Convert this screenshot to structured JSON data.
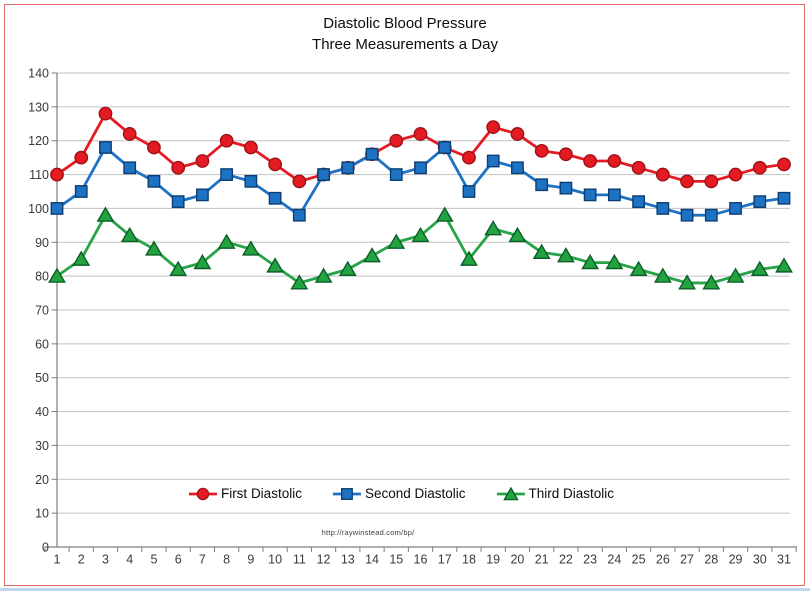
{
  "frame": {
    "border_color": "#df6f68",
    "bottom_strip_color": "#c3d6ec"
  },
  "chart_data": {
    "type": "line",
    "title": "Diastolic Blood Pressure",
    "subtitle": "Three Measurements a Day",
    "x_categories": [
      1,
      2,
      3,
      4,
      5,
      6,
      7,
      8,
      9,
      10,
      11,
      12,
      13,
      14,
      15,
      16,
      17,
      18,
      19,
      20,
      21,
      22,
      23,
      24,
      25,
      26,
      27,
      28,
      29,
      30,
      31
    ],
    "yticks": [
      0,
      10,
      20,
      30,
      40,
      50,
      60,
      70,
      80,
      90,
      100,
      110,
      120,
      130,
      140
    ],
    "ylim": [
      0,
      140
    ],
    "grid": true,
    "legend_position": "bottom-inside",
    "footer_link": "http://raywinstead.com/bp/",
    "colors": {
      "gridline": "#c2c2c2",
      "axis": "#7f7f7f"
    },
    "series": [
      {
        "name": "First Diastolic",
        "marker": "circle",
        "color": "#e41b23",
        "marker_fill": "#e41b23",
        "marker_stroke": "#9e1116",
        "values": [
          110,
          115,
          128,
          122,
          118,
          112,
          114,
          120,
          118,
          113,
          108,
          110,
          112,
          116,
          120,
          122,
          118,
          115,
          124,
          122,
          117,
          116,
          114,
          114,
          112,
          110,
          108,
          108,
          110,
          112,
          113
        ]
      },
      {
        "name": "Second Diastolic",
        "marker": "square",
        "color": "#1d72c4",
        "marker_fill": "#1d72c4",
        "marker_stroke": "#0c3e72",
        "values": [
          100,
          105,
          118,
          112,
          108,
          102,
          104,
          110,
          108,
          103,
          98,
          110,
          112,
          116,
          110,
          112,
          118,
          105,
          114,
          112,
          107,
          106,
          104,
          104,
          102,
          100,
          98,
          98,
          100,
          102,
          103
        ]
      },
      {
        "name": "Third Diastolic",
        "marker": "triangle",
        "color": "#27a348",
        "marker_fill": "#22a340",
        "marker_stroke": "#0b5e27",
        "values": [
          80,
          85,
          98,
          92,
          88,
          82,
          84,
          90,
          88,
          83,
          78,
          80,
          82,
          86,
          90,
          92,
          98,
          85,
          94,
          92,
          87,
          86,
          84,
          84,
          82,
          80,
          78,
          78,
          80,
          82,
          83
        ]
      }
    ]
  }
}
